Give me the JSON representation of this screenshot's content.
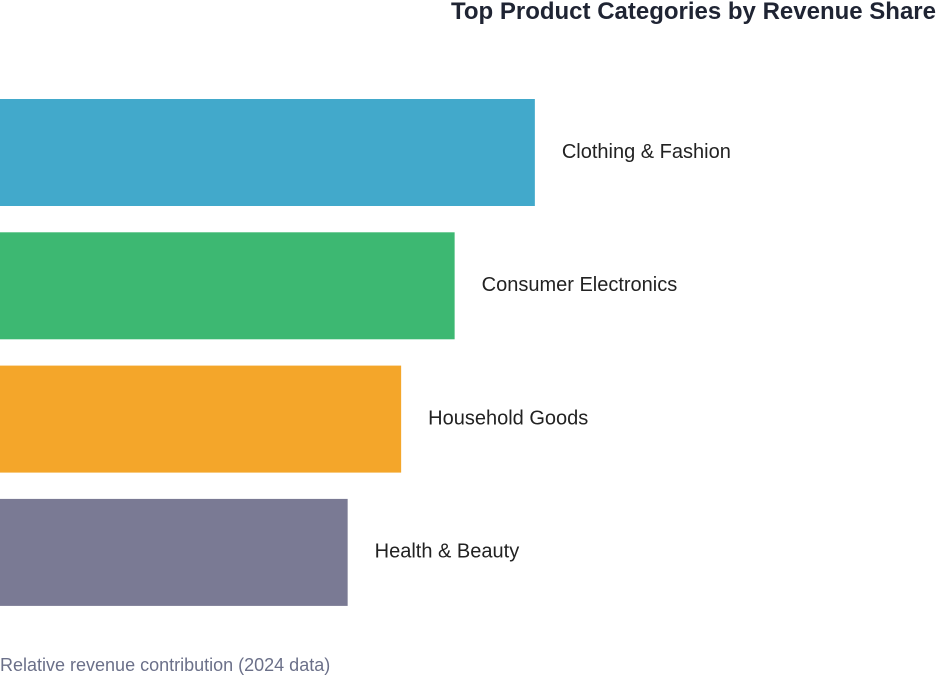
{
  "chart_data": {
    "type": "bar",
    "orientation": "horizontal",
    "title": "Top Product Categories by Revenue Share",
    "caption": "Relative revenue contribution (2024 data)",
    "categories": [
      "Clothing & Fashion",
      "Consumer Electronics",
      "Household Goods",
      "Health & Beauty"
    ],
    "values": [
      100,
      85,
      75,
      65
    ],
    "colors": [
      "#42a9cb",
      "#3db872",
      "#f4a62a",
      "#7a7a94"
    ],
    "xlabel": "",
    "ylabel": "",
    "xlim": [
      0,
      175
    ],
    "grid": false,
    "legend": "none"
  }
}
